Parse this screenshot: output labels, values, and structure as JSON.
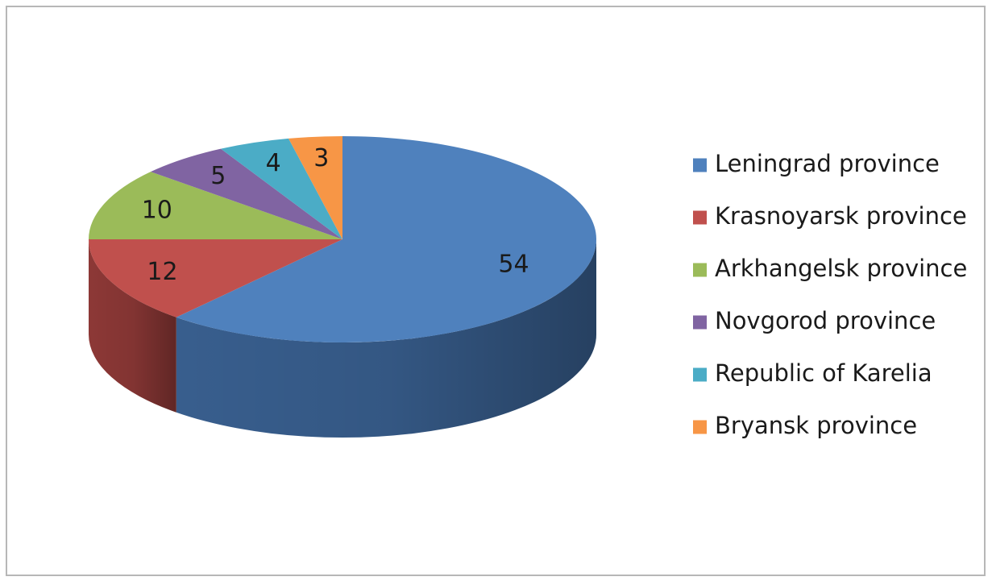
{
  "chart_data": {
    "type": "pie",
    "three_d": true,
    "title": "",
    "legend_position": "right",
    "slices": [
      {
        "label": "Leningrad province",
        "value": 54,
        "color": "#4F81BD",
        "side_color": "#3B6395"
      },
      {
        "label": "Krasnoyarsk province",
        "value": 12,
        "color": "#C0504D",
        "side_color": "#943B39"
      },
      {
        "label": "Arkhangelsk province",
        "value": 10,
        "color": "#9BBB59",
        "side_color": "#779043"
      },
      {
        "label": "Novgorod province",
        "value": 5,
        "color": "#8064A2",
        "side_color": "#624C7C"
      },
      {
        "label": "Republic of Karelia",
        "value": 4,
        "color": "#4BACC6",
        "side_color": "#368398"
      },
      {
        "label": "Bryansk province",
        "value": 3,
        "color": "#F79646",
        "side_color": "#C26F2C"
      }
    ]
  }
}
